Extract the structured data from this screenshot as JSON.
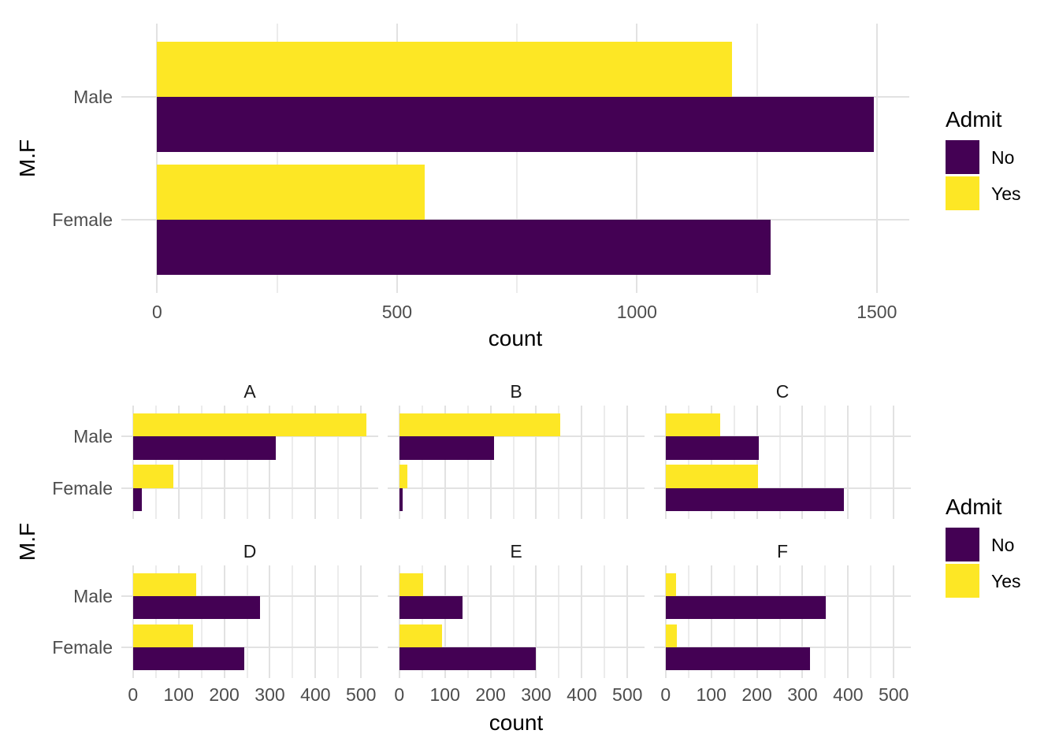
{
  "figure": {
    "background": "#FFFFFF"
  },
  "palette": {
    "no": "#440154",
    "yes": "#FDE725",
    "grid_major": "#E2E2E2",
    "grid_minor": "#ECECEC",
    "axis_text": "#4D4D4D",
    "strip_text": "#1A1A1A",
    "title_text": "#000000"
  },
  "legend": {
    "title": "Admit",
    "items": [
      {
        "label": "No",
        "color": "#440154"
      },
      {
        "label": "Yes",
        "color": "#FDE725"
      }
    ]
  },
  "chart_data": [
    {
      "type": "bar",
      "orientation": "horizontal",
      "title": "",
      "categories": [
        "Male",
        "Female"
      ],
      "dodge_order_top_to_bottom": [
        "Yes",
        "No"
      ],
      "series": [
        {
          "name": "No",
          "color": "#440154",
          "values": [
            1493,
            1278
          ]
        },
        {
          "name": "Yes",
          "color": "#FDE725",
          "values": [
            1198,
            557
          ]
        }
      ],
      "xlabel": "count",
      "ylabel": "M.F",
      "x_ticks": [
        0,
        500,
        1000,
        1500
      ],
      "xlim": [
        0,
        1568
      ],
      "grid": true,
      "legend_title": "Admit",
      "legend_position": "right"
    },
    {
      "type": "bar",
      "orientation": "horizontal",
      "title": "",
      "faceted_by": "Dept",
      "categories": [
        "Male",
        "Female"
      ],
      "dodge_order_top_to_bottom": [
        "Yes",
        "No"
      ],
      "facets": [
        {
          "label": "A",
          "series": [
            {
              "name": "No",
              "values": [
                313,
                19
              ]
            },
            {
              "name": "Yes",
              "values": [
                512,
                89
              ]
            }
          ]
        },
        {
          "label": "B",
          "series": [
            {
              "name": "No",
              "values": [
                207,
                8
              ]
            },
            {
              "name": "Yes",
              "values": [
                353,
                17
              ]
            }
          ]
        },
        {
          "label": "C",
          "series": [
            {
              "name": "No",
              "values": [
                205,
                391
              ]
            },
            {
              "name": "Yes",
              "values": [
                120,
                202
              ]
            }
          ]
        },
        {
          "label": "D",
          "series": [
            {
              "name": "No",
              "values": [
                279,
                244
              ]
            },
            {
              "name": "Yes",
              "values": [
                138,
                131
              ]
            }
          ]
        },
        {
          "label": "E",
          "series": [
            {
              "name": "No",
              "values": [
                138,
                299
              ]
            },
            {
              "name": "Yes",
              "values": [
                53,
                94
              ]
            }
          ]
        },
        {
          "label": "F",
          "series": [
            {
              "name": "No",
              "values": [
                351,
                317
              ]
            },
            {
              "name": "Yes",
              "values": [
                22,
                24
              ]
            }
          ]
        }
      ],
      "xlabel": "count",
      "ylabel": "M.F",
      "x_ticks": [
        0,
        100,
        200,
        300,
        400,
        500
      ],
      "xlim": [
        0,
        538
      ],
      "grid": true,
      "legend_title": "Admit",
      "legend_position": "right"
    }
  ]
}
